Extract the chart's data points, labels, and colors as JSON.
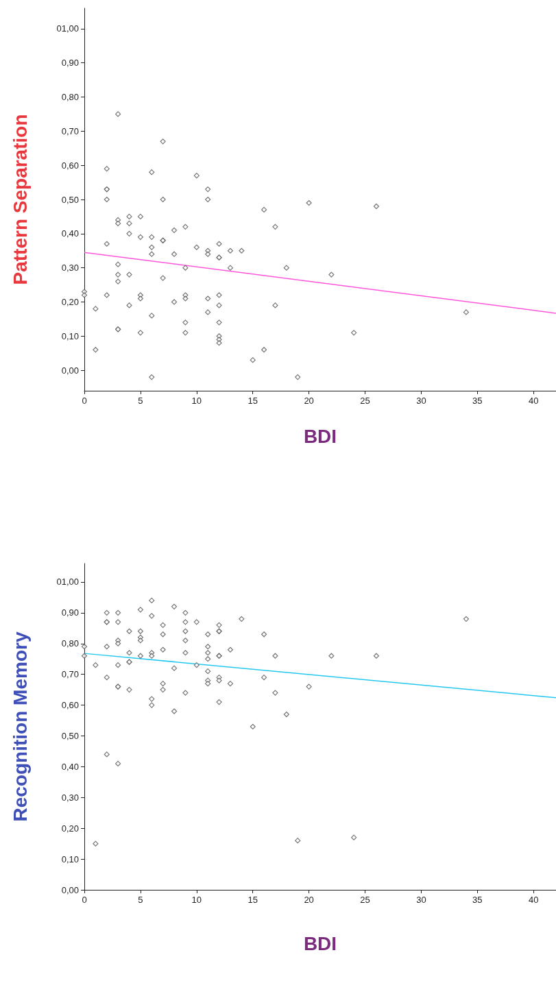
{
  "chart_data": [
    {
      "type": "scatter",
      "xlabel": "BDI",
      "ylabel": "Pattern Separation",
      "grid": false,
      "xlim": [
        0,
        42
      ],
      "xticks": [
        0,
        5,
        10,
        15,
        20,
        25,
        30,
        35,
        40
      ],
      "ylim": [
        -0.06,
        1.06
      ],
      "yticks": [
        {
          "value": 0,
          "label": "0,00"
        },
        {
          "value": 0.1,
          "label": "0,10"
        },
        {
          "value": 0.2,
          "label": "0,20"
        },
        {
          "value": 0.3,
          "label": "0,30"
        },
        {
          "value": 0.4,
          "label": "0,40"
        },
        {
          "value": 0.5,
          "label": "0,50"
        },
        {
          "value": 0.6,
          "label": "0,60"
        },
        {
          "value": 0.7,
          "label": "0,70"
        },
        {
          "value": 0.8,
          "label": "0,80"
        },
        {
          "value": 0.9,
          "label": "0,90"
        },
        {
          "value": 1,
          "label": "01,00"
        }
      ],
      "series": [
        {
          "color": "#555555",
          "marker": "diamond",
          "x": [
            0,
            0,
            1,
            1,
            2,
            2,
            2,
            2,
            2,
            2,
            3,
            3,
            3,
            3,
            3,
            3,
            3,
            3,
            4,
            4,
            4,
            4,
            4,
            5,
            5,
            5,
            5,
            5,
            6,
            6,
            6,
            6,
            6,
            6,
            7,
            7,
            7,
            7,
            7,
            8,
            8,
            8,
            9,
            9,
            9,
            9,
            9,
            9,
            10,
            10,
            11,
            11,
            11,
            11,
            11,
            11,
            12,
            12,
            12,
            12,
            12,
            12,
            12,
            12,
            12,
            13,
            13,
            14,
            15,
            16,
            16,
            17,
            17,
            18,
            19,
            20,
            22,
            24,
            26,
            34
          ],
          "values": [
            0.23,
            0.22,
            0.18,
            0.06,
            0.59,
            0.53,
            0.53,
            0.5,
            0.37,
            0.22,
            0.75,
            0.44,
            0.43,
            0.31,
            0.28,
            0.26,
            0.12,
            0.12,
            0.45,
            0.43,
            0.4,
            0.28,
            0.19,
            0.45,
            0.39,
            0.22,
            0.21,
            0.11,
            0.58,
            0.39,
            0.36,
            0.34,
            0.16,
            -0.02,
            0.67,
            0.5,
            0.38,
            0.38,
            0.27,
            0.41,
            0.34,
            0.2,
            0.42,
            0.3,
            0.22,
            0.21,
            0.14,
            0.11,
            0.57,
            0.36,
            0.53,
            0.5,
            0.35,
            0.34,
            0.21,
            0.17,
            0.37,
            0.33,
            0.33,
            0.22,
            0.19,
            0.14,
            0.1,
            0.09,
            0.08,
            0.35,
            0.3,
            0.35,
            0.03,
            0.47,
            0.06,
            0.42,
            0.19,
            0.3,
            -0.02,
            0.49,
            0.28,
            0.11,
            0.48,
            0.17
          ]
        },
        {
          "type": "line",
          "marker": "none",
          "color": "#ff55dd",
          "x": [
            0,
            42
          ],
          "values": [
            0.345,
            0.167
          ]
        }
      ]
    },
    {
      "type": "scatter",
      "xlabel": "BDI",
      "ylabel": "Recognition Memory",
      "grid": false,
      "xlim": [
        0,
        42
      ],
      "xticks": [
        0,
        5,
        10,
        15,
        20,
        25,
        30,
        35,
        40
      ],
      "ylim": [
        0,
        1.06
      ],
      "yticks": [
        {
          "value": 0,
          "label": "0,00"
        },
        {
          "value": 0.1,
          "label": "0,10"
        },
        {
          "value": 0.2,
          "label": "0,20"
        },
        {
          "value": 0.3,
          "label": "0,30"
        },
        {
          "value": 0.4,
          "label": "0,40"
        },
        {
          "value": 0.5,
          "label": "0,50"
        },
        {
          "value": 0.6,
          "label": "0,60"
        },
        {
          "value": 0.7,
          "label": "0,70"
        },
        {
          "value": 0.8,
          "label": "0,80"
        },
        {
          "value": 0.9,
          "label": "0,90"
        },
        {
          "value": 1,
          "label": "01,00"
        }
      ],
      "series": [
        {
          "color": "#555555",
          "marker": "diamond",
          "x": [
            0,
            0,
            1,
            1,
            2,
            2,
            2,
            2,
            2,
            2,
            3,
            3,
            3,
            3,
            3,
            3,
            3,
            3,
            4,
            4,
            4,
            4,
            4,
            5,
            5,
            5,
            5,
            5,
            6,
            6,
            6,
            6,
            6,
            6,
            7,
            7,
            7,
            7,
            7,
            8,
            8,
            8,
            9,
            9,
            9,
            9,
            9,
            9,
            10,
            10,
            11,
            11,
            11,
            11,
            11,
            11,
            11,
            12,
            12,
            12,
            12,
            12,
            12,
            12,
            12,
            13,
            13,
            14,
            15,
            16,
            16,
            17,
            17,
            18,
            19,
            20,
            22,
            24,
            26,
            34
          ],
          "values": [
            0.79,
            0.76,
            0.73,
            0.15,
            0.9,
            0.87,
            0.87,
            0.79,
            0.69,
            0.44,
            0.9,
            0.87,
            0.81,
            0.8,
            0.73,
            0.66,
            0.66,
            0.41,
            0.84,
            0.77,
            0.74,
            0.74,
            0.65,
            0.91,
            0.84,
            0.82,
            0.81,
            0.76,
            0.94,
            0.89,
            0.77,
            0.76,
            0.62,
            0.6,
            0.86,
            0.83,
            0.78,
            0.67,
            0.65,
            0.92,
            0.72,
            0.58,
            0.9,
            0.87,
            0.84,
            0.81,
            0.77,
            0.64,
            0.87,
            0.73,
            0.83,
            0.79,
            0.77,
            0.75,
            0.71,
            0.68,
            0.67,
            0.86,
            0.84,
            0.84,
            0.76,
            0.76,
            0.69,
            0.68,
            0.61,
            0.78,
            0.67,
            0.88,
            0.53,
            0.83,
            0.69,
            0.76,
            0.64,
            0.57,
            0.16,
            0.66,
            0.76,
            0.17,
            0.76,
            0.88
          ]
        },
        {
          "type": "line",
          "marker": "none",
          "color": "#22c8f0",
          "x": [
            0,
            42
          ],
          "values": [
            0.768,
            0.624
          ]
        }
      ]
    }
  ]
}
